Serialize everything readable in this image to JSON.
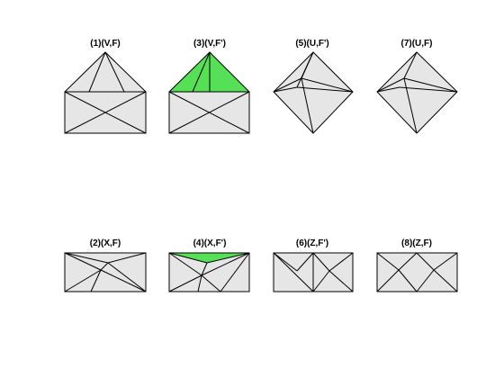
{
  "colors": {
    "face_fill": "#e6e6e6",
    "highlight_fill": "#55e055",
    "edge_stroke": "#000000",
    "background": "#ffffff"
  },
  "panels": [
    {
      "title": "(1)(V,F)"
    },
    {
      "title": "(3)(V,F')"
    },
    {
      "title": "(5)(U,F')"
    },
    {
      "title": "(7)(U,F)"
    },
    {
      "title": "(2)(X,F)"
    },
    {
      "title": "(4)(X,F')"
    },
    {
      "title": "(6)(Z,F')"
    },
    {
      "title": "(8)(Z,F)"
    }
  ]
}
